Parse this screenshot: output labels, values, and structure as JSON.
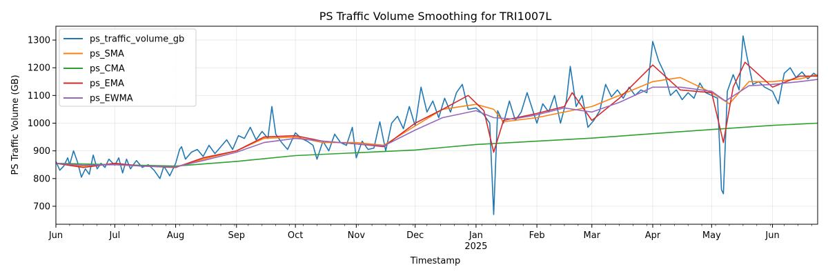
{
  "chart_data": {
    "type": "line",
    "title": "PS Traffic Volume Smoothing for TRI1007L",
    "xlabel": "Timestamp",
    "ylabel": "PS Traffic Volume (GB)",
    "grid": true,
    "legend_position": "top-left",
    "xlim": [
      "2024-06-01",
      "2025-06-24"
    ],
    "ylim": [
      635,
      1350
    ],
    "yticks": [
      700,
      800,
      900,
      1000,
      1100,
      1200,
      1300
    ],
    "xticks": [
      {
        "date": "2024-06-01",
        "label": "Jun",
        "sublabel": ""
      },
      {
        "date": "2024-07-01",
        "label": "Jul",
        "sublabel": ""
      },
      {
        "date": "2024-08-01",
        "label": "Aug",
        "sublabel": ""
      },
      {
        "date": "2024-09-01",
        "label": "Sep",
        "sublabel": ""
      },
      {
        "date": "2024-10-01",
        "label": "Oct",
        "sublabel": ""
      },
      {
        "date": "2024-11-01",
        "label": "Nov",
        "sublabel": ""
      },
      {
        "date": "2024-12-01",
        "label": "Dec",
        "sublabel": ""
      },
      {
        "date": "2025-01-01",
        "label": "Jan",
        "sublabel": "2025"
      },
      {
        "date": "2025-02-01",
        "label": "Feb",
        "sublabel": ""
      },
      {
        "date": "2025-03-01",
        "label": "Mar",
        "sublabel": ""
      },
      {
        "date": "2025-04-01",
        "label": "Apr",
        "sublabel": ""
      },
      {
        "date": "2025-05-01",
        "label": "May",
        "sublabel": ""
      },
      {
        "date": "2025-06-01",
        "label": "Jun",
        "sublabel": ""
      }
    ],
    "series": [
      {
        "name": "ps_traffic_volume_gb",
        "color": "#1f77b4",
        "points": [
          [
            "2024-06-01",
            862
          ],
          [
            "2024-06-03",
            830
          ],
          [
            "2024-06-05",
            845
          ],
          [
            "2024-06-07",
            875
          ],
          [
            "2024-06-08",
            850
          ],
          [
            "2024-06-10",
            900
          ],
          [
            "2024-06-12",
            860
          ],
          [
            "2024-06-14",
            805
          ],
          [
            "2024-06-16",
            835
          ],
          [
            "2024-06-18",
            815
          ],
          [
            "2024-06-20",
            885
          ],
          [
            "2024-06-22",
            835
          ],
          [
            "2024-06-24",
            855
          ],
          [
            "2024-06-26",
            840
          ],
          [
            "2024-06-28",
            870
          ],
          [
            "2024-07-01",
            848
          ],
          [
            "2024-07-03",
            875
          ],
          [
            "2024-07-05",
            820
          ],
          [
            "2024-07-07",
            870
          ],
          [
            "2024-07-09",
            835
          ],
          [
            "2024-07-12",
            865
          ],
          [
            "2024-07-15",
            840
          ],
          [
            "2024-07-18",
            850
          ],
          [
            "2024-07-21",
            830
          ],
          [
            "2024-07-24",
            800
          ],
          [
            "2024-07-26",
            845
          ],
          [
            "2024-07-29",
            810
          ],
          [
            "2024-08-01",
            855
          ],
          [
            "2024-08-03",
            905
          ],
          [
            "2024-08-04",
            915
          ],
          [
            "2024-08-06",
            870
          ],
          [
            "2024-08-09",
            895
          ],
          [
            "2024-08-12",
            905
          ],
          [
            "2024-08-15",
            880
          ],
          [
            "2024-08-18",
            920
          ],
          [
            "2024-08-21",
            890
          ],
          [
            "2024-08-24",
            915
          ],
          [
            "2024-08-27",
            940
          ],
          [
            "2024-08-30",
            905
          ],
          [
            "2024-09-02",
            955
          ],
          [
            "2024-09-05",
            945
          ],
          [
            "2024-09-08",
            985
          ],
          [
            "2024-09-11",
            940
          ],
          [
            "2024-09-14",
            970
          ],
          [
            "2024-09-17",
            945
          ],
          [
            "2024-09-19",
            1060
          ],
          [
            "2024-09-21",
            960
          ],
          [
            "2024-09-24",
            930
          ],
          [
            "2024-09-27",
            905
          ],
          [
            "2024-10-01",
            965
          ],
          [
            "2024-10-04",
            945
          ],
          [
            "2024-10-07",
            935
          ],
          [
            "2024-10-10",
            920
          ],
          [
            "2024-10-12",
            870
          ],
          [
            "2024-10-15",
            935
          ],
          [
            "2024-10-18",
            900
          ],
          [
            "2024-10-21",
            960
          ],
          [
            "2024-10-24",
            930
          ],
          [
            "2024-10-27",
            920
          ],
          [
            "2024-10-30",
            985
          ],
          [
            "2024-11-01",
            875
          ],
          [
            "2024-11-04",
            935
          ],
          [
            "2024-11-07",
            905
          ],
          [
            "2024-11-10",
            910
          ],
          [
            "2024-11-13",
            1005
          ],
          [
            "2024-11-16",
            900
          ],
          [
            "2024-11-19",
            1000
          ],
          [
            "2024-11-22",
            1025
          ],
          [
            "2024-11-25",
            980
          ],
          [
            "2024-11-28",
            1060
          ],
          [
            "2024-12-01",
            990
          ],
          [
            "2024-12-04",
            1130
          ],
          [
            "2024-12-07",
            1040
          ],
          [
            "2024-12-10",
            1080
          ],
          [
            "2024-12-13",
            1020
          ],
          [
            "2024-12-16",
            1090
          ],
          [
            "2024-12-19",
            1040
          ],
          [
            "2024-12-22",
            1110
          ],
          [
            "2024-12-25",
            1140
          ],
          [
            "2024-12-28",
            1050
          ],
          [
            "2025-01-01",
            1055
          ],
          [
            "2025-01-05",
            1030
          ],
          [
            "2025-01-08",
            1000
          ],
          [
            "2025-01-10",
            670
          ],
          [
            "2025-01-12",
            1045
          ],
          [
            "2025-01-15",
            1000
          ],
          [
            "2025-01-18",
            1080
          ],
          [
            "2025-01-21",
            1010
          ],
          [
            "2025-01-24",
            1040
          ],
          [
            "2025-01-27",
            1110
          ],
          [
            "2025-02-01",
            1000
          ],
          [
            "2025-02-04",
            1070
          ],
          [
            "2025-02-07",
            1040
          ],
          [
            "2025-02-10",
            1100
          ],
          [
            "2025-02-13",
            1000
          ],
          [
            "2025-02-16",
            1080
          ],
          [
            "2025-02-18",
            1205
          ],
          [
            "2025-02-21",
            1060
          ],
          [
            "2025-02-24",
            1100
          ],
          [
            "2025-02-27",
            985
          ],
          [
            "2025-03-02",
            1010
          ],
          [
            "2025-03-05",
            1045
          ],
          [
            "2025-03-08",
            1140
          ],
          [
            "2025-03-11",
            1095
          ],
          [
            "2025-03-14",
            1120
          ],
          [
            "2025-03-17",
            1090
          ],
          [
            "2025-03-20",
            1130
          ],
          [
            "2025-03-23",
            1100
          ],
          [
            "2025-03-26",
            1120
          ],
          [
            "2025-03-29",
            1110
          ],
          [
            "2025-04-01",
            1295
          ],
          [
            "2025-04-04",
            1225
          ],
          [
            "2025-04-07",
            1180
          ],
          [
            "2025-04-10",
            1100
          ],
          [
            "2025-04-13",
            1120
          ],
          [
            "2025-04-16",
            1085
          ],
          [
            "2025-04-19",
            1110
          ],
          [
            "2025-04-22",
            1090
          ],
          [
            "2025-04-25",
            1145
          ],
          [
            "2025-04-28",
            1110
          ],
          [
            "2025-05-01",
            1100
          ],
          [
            "2025-05-04",
            1090
          ],
          [
            "2025-05-06",
            760
          ],
          [
            "2025-05-07",
            745
          ],
          [
            "2025-05-09",
            1115
          ],
          [
            "2025-05-12",
            1175
          ],
          [
            "2025-05-15",
            1120
          ],
          [
            "2025-05-17",
            1315
          ],
          [
            "2025-05-19",
            1240
          ],
          [
            "2025-05-22",
            1140
          ],
          [
            "2025-05-25",
            1150
          ],
          [
            "2025-05-28",
            1130
          ],
          [
            "2025-06-01",
            1115
          ],
          [
            "2025-06-04",
            1070
          ],
          [
            "2025-06-07",
            1180
          ],
          [
            "2025-06-10",
            1200
          ],
          [
            "2025-06-13",
            1165
          ],
          [
            "2025-06-16",
            1185
          ],
          [
            "2025-06-19",
            1160
          ],
          [
            "2025-06-22",
            1180
          ],
          [
            "2025-06-24",
            1170
          ]
        ]
      },
      {
        "name": "ps_SMA",
        "color": "#ff7f0e",
        "points": [
          [
            "2024-06-01",
            855
          ],
          [
            "2024-06-15",
            845
          ],
          [
            "2024-07-01",
            852
          ],
          [
            "2024-07-15",
            845
          ],
          [
            "2024-08-01",
            842
          ],
          [
            "2024-08-15",
            870
          ],
          [
            "2024-09-01",
            900
          ],
          [
            "2024-09-15",
            945
          ],
          [
            "2024-10-01",
            950
          ],
          [
            "2024-10-15",
            930
          ],
          [
            "2024-11-01",
            930
          ],
          [
            "2024-11-15",
            920
          ],
          [
            "2024-12-01",
            990
          ],
          [
            "2024-12-15",
            1050
          ],
          [
            "2025-01-01",
            1068
          ],
          [
            "2025-01-10",
            1050
          ],
          [
            "2025-01-15",
            1005
          ],
          [
            "2025-02-01",
            1020
          ],
          [
            "2025-02-15",
            1040
          ],
          [
            "2025-03-01",
            1060
          ],
          [
            "2025-03-15",
            1100
          ],
          [
            "2025-04-01",
            1150
          ],
          [
            "2025-04-15",
            1165
          ],
          [
            "2025-05-01",
            1110
          ],
          [
            "2025-05-10",
            1070
          ],
          [
            "2025-05-20",
            1150
          ],
          [
            "2025-06-01",
            1150
          ],
          [
            "2025-06-15",
            1160
          ],
          [
            "2025-06-24",
            1175
          ]
        ]
      },
      {
        "name": "ps_CMA",
        "color": "#2ca02c",
        "points": [
          [
            "2024-06-01",
            855
          ],
          [
            "2024-07-01",
            850
          ],
          [
            "2024-08-01",
            845
          ],
          [
            "2024-09-01",
            862
          ],
          [
            "2024-10-01",
            883
          ],
          [
            "2024-11-01",
            893
          ],
          [
            "2024-12-01",
            903
          ],
          [
            "2025-01-01",
            923
          ],
          [
            "2025-02-01",
            935
          ],
          [
            "2025-03-01",
            946
          ],
          [
            "2025-04-01",
            962
          ],
          [
            "2025-05-01",
            977
          ],
          [
            "2025-06-01",
            992
          ],
          [
            "2025-06-24",
            1000
          ]
        ]
      },
      {
        "name": "ps_EMA",
        "color": "#d62728",
        "points": [
          [
            "2024-06-01",
            855
          ],
          [
            "2024-06-15",
            840
          ],
          [
            "2024-07-01",
            855
          ],
          [
            "2024-07-15",
            845
          ],
          [
            "2024-08-01",
            840
          ],
          [
            "2024-08-15",
            875
          ],
          [
            "2024-09-01",
            900
          ],
          [
            "2024-09-15",
            950
          ],
          [
            "2024-10-01",
            955
          ],
          [
            "2024-10-15",
            935
          ],
          [
            "2024-11-01",
            925
          ],
          [
            "2024-11-15",
            915
          ],
          [
            "2024-12-01",
            1000
          ],
          [
            "2024-12-15",
            1050
          ],
          [
            "2024-12-28",
            1100
          ],
          [
            "2025-01-05",
            1045
          ],
          [
            "2025-01-10",
            895
          ],
          [
            "2025-01-15",
            1010
          ],
          [
            "2025-02-01",
            1035
          ],
          [
            "2025-02-15",
            1060
          ],
          [
            "2025-02-19",
            1110
          ],
          [
            "2025-02-25",
            1050
          ],
          [
            "2025-03-01",
            1010
          ],
          [
            "2025-03-15",
            1090
          ],
          [
            "2025-04-01",
            1210
          ],
          [
            "2025-04-15",
            1120
          ],
          [
            "2025-05-01",
            1110
          ],
          [
            "2025-05-07",
            930
          ],
          [
            "2025-05-12",
            1130
          ],
          [
            "2025-05-18",
            1220
          ],
          [
            "2025-06-01",
            1130
          ],
          [
            "2025-06-15",
            1170
          ],
          [
            "2025-06-24",
            1170
          ]
        ]
      },
      {
        "name": "ps_EWMA",
        "color": "#9467bd",
        "points": [
          [
            "2024-06-01",
            855
          ],
          [
            "2024-06-15",
            848
          ],
          [
            "2024-07-01",
            850
          ],
          [
            "2024-07-15",
            845
          ],
          [
            "2024-08-01",
            842
          ],
          [
            "2024-08-15",
            865
          ],
          [
            "2024-09-01",
            895
          ],
          [
            "2024-09-15",
            930
          ],
          [
            "2024-10-01",
            945
          ],
          [
            "2024-10-15",
            935
          ],
          [
            "2024-11-01",
            925
          ],
          [
            "2024-11-15",
            918
          ],
          [
            "2024-12-01",
            975
          ],
          [
            "2024-12-15",
            1020
          ],
          [
            "2025-01-01",
            1045
          ],
          [
            "2025-01-10",
            1020
          ],
          [
            "2025-01-20",
            1015
          ],
          [
            "2025-02-01",
            1030
          ],
          [
            "2025-02-15",
            1055
          ],
          [
            "2025-03-01",
            1040
          ],
          [
            "2025-03-15",
            1075
          ],
          [
            "2025-04-01",
            1130
          ],
          [
            "2025-04-15",
            1130
          ],
          [
            "2025-05-01",
            1115
          ],
          [
            "2025-05-08",
            1080
          ],
          [
            "2025-05-20",
            1135
          ],
          [
            "2025-06-01",
            1140
          ],
          [
            "2025-06-15",
            1150
          ],
          [
            "2025-06-24",
            1158
          ]
        ]
      }
    ]
  }
}
